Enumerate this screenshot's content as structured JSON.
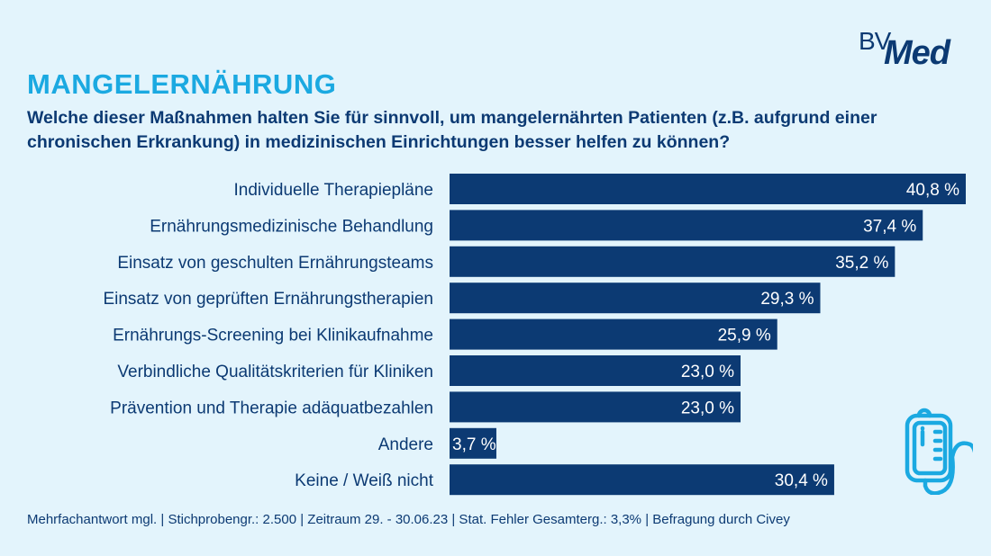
{
  "logo": {
    "text_top": "BV",
    "text_main": "Med"
  },
  "title": "MANGELERNÄHRUNG",
  "question": "Welche dieser Maßnahmen halten Sie für sinnvoll, um mangelernährten Patienten (z.B. aufgrund einer chronischen Erkrankung) in medizinischen Einrichtungen besser helfen zu können?",
  "footer": "Mehrfachantwort mgl. | Stichprobengr.: 2.500 | Zeitraum 29. - 30.06.23 | Stat. Fehler Gesamterg.: 3,3% | Befragung durch Civey",
  "icon": "infusion-bag-icon",
  "colors": {
    "bar": "#0c3a73",
    "title": "#1ba9e1",
    "background": "#e3f4fc",
    "bar_label": "#ffffff"
  },
  "chart_data": {
    "type": "bar",
    "orientation": "horizontal",
    "categories": [
      "Individuelle Therapiepläne",
      "Ernährungsmedizinische Behandlung",
      "Einsatz von geschulten Ernährungsteams",
      "Einsatz von geprüften Ernährungstherapien",
      "Ernährungs-Screening bei Klinikaufnahme",
      "Verbindliche Qualitätskriterien für Kliniken",
      "Prävention und Therapie adäquatbezahlen",
      "Andere",
      "Keine / Weiß nicht"
    ],
    "values": [
      40.8,
      37.4,
      35.2,
      29.3,
      25.9,
      23.0,
      23.0,
      3.7,
      30.4
    ],
    "labels": [
      "40,8 %",
      "37,4 %",
      "35,2 %",
      "29,3 %",
      "25,9 %",
      "23,0 %",
      "23,0 %",
      "3,7 %",
      "30,4 %"
    ],
    "unit": "%",
    "grid": false
  }
}
